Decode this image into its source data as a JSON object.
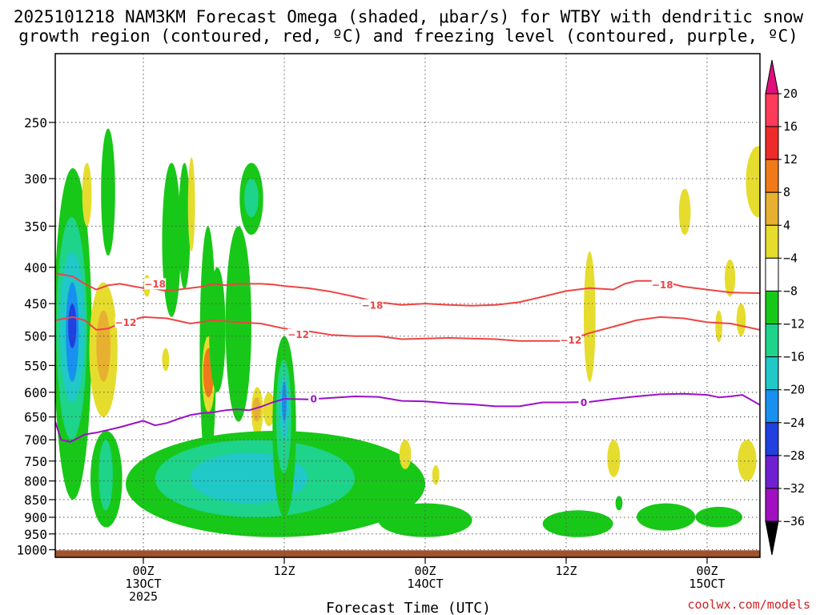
{
  "chart_data": {
    "type": "heatmap",
    "title_line1": "2025101218 NAM3KM Forecast Omega (shaded, μbar/s) for WTBY with dendritic snow",
    "title_line2": "growth region (contoured, red, ºC) and freezing level (contoured, purple, ºC)",
    "xlabel": "Forecast Time (UTC)",
    "credit": "coolwx.com/models",
    "y_axis": {
      "type": "log-pressure",
      "unit": "hPa",
      "ylim": [
        1025,
        200
      ],
      "ticks": [
        250,
        300,
        350,
        400,
        450,
        500,
        550,
        600,
        650,
        700,
        750,
        800,
        850,
        900,
        950,
        1000
      ]
    },
    "x_axis": {
      "unit": "hours",
      "xlim": [
        -7.5,
        52.5
      ],
      "ticks": [
        {
          "t": 0,
          "lines": [
            "00Z",
            "13OCT",
            "2025"
          ]
        },
        {
          "t": 12,
          "lines": [
            "12Z"
          ]
        },
        {
          "t": 24,
          "lines": [
            "00Z",
            "14OCT"
          ]
        },
        {
          "t": 36,
          "lines": [
            "12Z"
          ]
        },
        {
          "t": 48,
          "lines": [
            "00Z",
            "15OCT"
          ]
        }
      ]
    },
    "colorbar": {
      "levels": [
        20,
        16,
        12,
        8,
        4,
        -4,
        -8,
        -12,
        -16,
        -20,
        -24,
        -28,
        -32,
        -36
      ],
      "colors": [
        "#ff3b5a",
        "#ef2a2a",
        "#f07a1a",
        "#e8b030",
        "#e6dc2e",
        "#ffffff",
        "#18c818",
        "#1ed38a",
        "#20c8c8",
        "#1890f0",
        "#2040e0",
        "#7020d0",
        "#a010c0",
        "#a0a0a0",
        "#000000"
      ],
      "top_arrow": "#e0107a",
      "bottom_arrow": "#000000"
    },
    "contours": [
      {
        "name": "-18",
        "color": "#ee4444",
        "labels": [
          {
            "t": 1,
            "p": 422
          },
          {
            "t": 19.5,
            "p": 452
          },
          {
            "t": 44.2,
            "p": 423
          }
        ],
        "points": [
          [
            -7.5,
            408
          ],
          [
            -6,
            412
          ],
          [
            -5,
            422
          ],
          [
            -4,
            430
          ],
          [
            -3,
            424
          ],
          [
            -2,
            422
          ],
          [
            -1,
            425
          ],
          [
            0,
            428
          ],
          [
            1,
            429
          ],
          [
            2,
            432
          ],
          [
            3,
            430
          ],
          [
            4,
            428
          ],
          [
            5,
            426
          ],
          [
            6,
            422
          ],
          [
            7,
            424
          ],
          [
            8,
            422
          ],
          [
            9,
            422
          ],
          [
            10,
            422
          ],
          [
            11,
            423
          ],
          [
            12,
            425
          ],
          [
            14,
            428
          ],
          [
            16,
            433
          ],
          [
            18,
            440
          ],
          [
            20,
            448
          ],
          [
            22,
            452
          ],
          [
            24,
            450
          ],
          [
            26,
            452
          ],
          [
            28,
            453
          ],
          [
            30,
            452
          ],
          [
            32,
            448
          ],
          [
            34,
            440
          ],
          [
            36,
            432
          ],
          [
            38,
            428
          ],
          [
            40,
            430
          ],
          [
            41,
            422
          ],
          [
            42,
            418
          ],
          [
            44,
            418
          ],
          [
            46,
            426
          ],
          [
            48,
            430
          ],
          [
            50,
            434
          ],
          [
            52.5,
            435
          ]
        ]
      },
      {
        "name": "-12",
        "color": "#ee4444",
        "labels": [
          {
            "t": -1.5,
            "p": 478
          },
          {
            "t": 13.2,
            "p": 497
          },
          {
            "t": 36.4,
            "p": 506
          }
        ],
        "points": [
          [
            -7.5,
            475
          ],
          [
            -6,
            470
          ],
          [
            -5,
            475
          ],
          [
            -4,
            490
          ],
          [
            -3,
            488
          ],
          [
            -2,
            480
          ],
          [
            0,
            470
          ],
          [
            2,
            472
          ],
          [
            4,
            480
          ],
          [
            6,
            475
          ],
          [
            8,
            478
          ],
          [
            10,
            480
          ],
          [
            12,
            488
          ],
          [
            14,
            492
          ],
          [
            16,
            498
          ],
          [
            18,
            500
          ],
          [
            20,
            500
          ],
          [
            22,
            505
          ],
          [
            24,
            504
          ],
          [
            26,
            503
          ],
          [
            28,
            504
          ],
          [
            30,
            505
          ],
          [
            32,
            508
          ],
          [
            34,
            508
          ],
          [
            36,
            508
          ],
          [
            38,
            495
          ],
          [
            40,
            485
          ],
          [
            42,
            475
          ],
          [
            44,
            470
          ],
          [
            46,
            472
          ],
          [
            48,
            478
          ],
          [
            50,
            480
          ],
          [
            52.5,
            490
          ]
        ]
      },
      {
        "name": "0",
        "color": "#9c10c8",
        "labels": [
          {
            "t": 14.5,
            "p": 613
          },
          {
            "t": 37.5,
            "p": 620
          }
        ],
        "points": [
          [
            -7.5,
            660
          ],
          [
            -7,
            700
          ],
          [
            -6.2,
            705
          ],
          [
            -5,
            688
          ],
          [
            -4,
            684
          ],
          [
            -2,
            672
          ],
          [
            0,
            658
          ],
          [
            1,
            668
          ],
          [
            2,
            663
          ],
          [
            3,
            654
          ],
          [
            4,
            646
          ],
          [
            5,
            642
          ],
          [
            6,
            640
          ],
          [
            7,
            636
          ],
          [
            8,
            634
          ],
          [
            9,
            636
          ],
          [
            10,
            629
          ],
          [
            11,
            620
          ],
          [
            12,
            613
          ],
          [
            14,
            614
          ],
          [
            16,
            611
          ],
          [
            18,
            608
          ],
          [
            20,
            609
          ],
          [
            22,
            617
          ],
          [
            24,
            618
          ],
          [
            26,
            622
          ],
          [
            28,
            624
          ],
          [
            30,
            628
          ],
          [
            32,
            628
          ],
          [
            34,
            620
          ],
          [
            36,
            620
          ],
          [
            38,
            619
          ],
          [
            40,
            613
          ],
          [
            42,
            608
          ],
          [
            44,
            604
          ],
          [
            46,
            603
          ],
          [
            48,
            605
          ],
          [
            49,
            610
          ],
          [
            50,
            608
          ],
          [
            51,
            605
          ],
          [
            52.5,
            625
          ]
        ]
      }
    ]
  }
}
